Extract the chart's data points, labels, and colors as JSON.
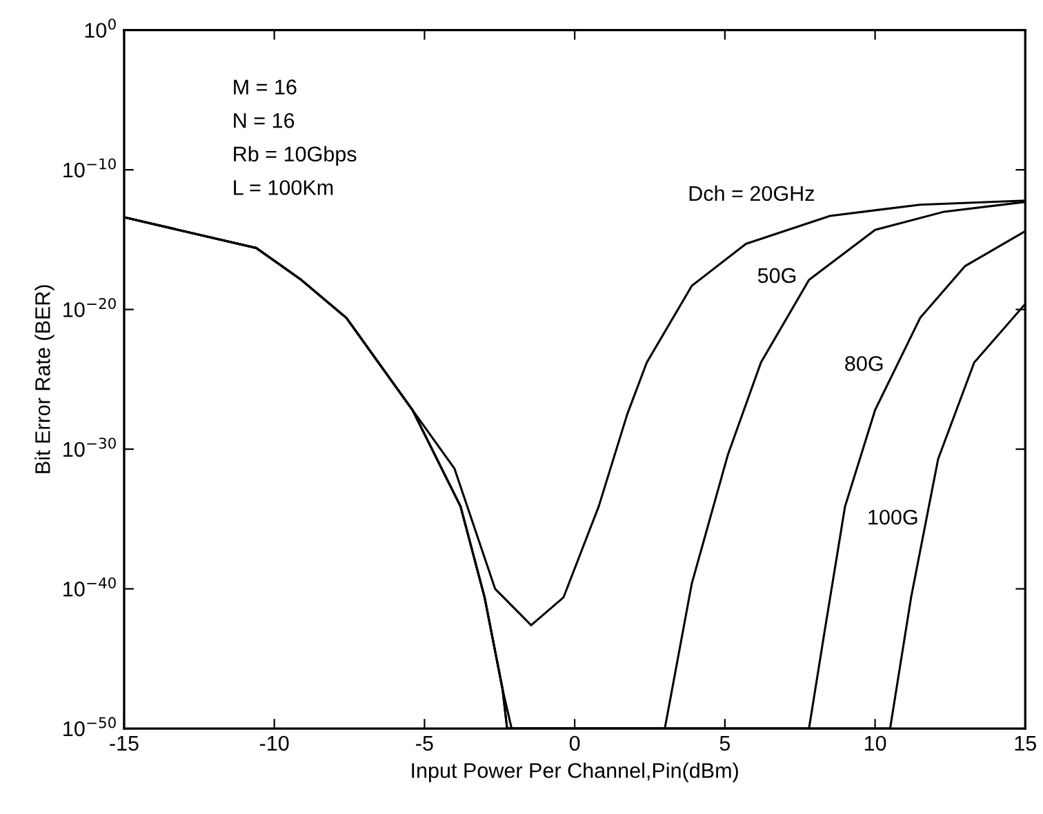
{
  "chart_data": {
    "type": "line",
    "xlabel": "Input Power Per Channel,Pin(dBm)",
    "ylabel": "Bit Error Rate (BER)",
    "log": "y",
    "xlim": [
      -15,
      15
    ],
    "xticks": [
      -15,
      -10,
      -5,
      0,
      5,
      10,
      15
    ],
    "ylim": [
      1e-50,
      1
    ],
    "yticks": [
      {
        "value": 1,
        "label": "10$^{0}$"
      },
      {
        "value": 1e-10,
        "label": "10$^{−10}$"
      },
      {
        "value": 1e-20,
        "label": "10$^{−20}$"
      },
      {
        "value": 1e-30,
        "label": "10$^{−30}$"
      },
      {
        "value": 1e-40,
        "label": "10$^{−40}$"
      },
      {
        "value": 1e-50,
        "label": "10$^{−50}$"
      }
    ],
    "grid": false,
    "legend": false,
    "marker": "none",
    "line_style": "solid",
    "annotations": [
      "M = 16",
      "N = 16",
      "Rb = 10Gbps",
      "L = 100Km"
    ],
    "series": [
      {
        "name": "Dch = 20GHz",
        "color": "#000000",
        "x": [
          -15,
          -10.6,
          -9.1,
          -7.6,
          -5.4,
          -4.0,
          -2.65,
          -1.45,
          -0.37,
          0.8,
          1.75,
          2.4,
          3.9,
          5.7,
          8.5,
          11.5,
          15
        ],
        "values": [
          4e-14,
          2.5e-16,
          1.3e-18,
          2.5e-21,
          6.3e-28,
          4e-32,
          1e-40,
          2.5e-43,
          2.5e-41,
          8e-35,
          3.2e-28,
          1.6e-24,
          5e-19,
          5e-16,
          5e-14,
          3.2e-13,
          6.3e-13
        ]
      },
      {
        "name": "50G",
        "color": "#000000",
        "x": [
          -15,
          -10.6,
          -9.1,
          -7.6,
          -5.4,
          -3.8,
          -3.0,
          -2.4,
          -2.1,
          3.0,
          3.9,
          5.1,
          6.2,
          7.8,
          10.0,
          12.3,
          15
        ],
        "values": [
          4e-14,
          2.5e-16,
          1.3e-18,
          2.5e-21,
          6.3e-28,
          8e-35,
          2.5e-41,
          6.3e-48,
          1e-50,
          1e-50,
          2.5e-40,
          4e-31,
          1.6e-24,
          1.3e-18,
          5e-15,
          1e-13,
          5e-13
        ]
      },
      {
        "name": "80G",
        "color": "#000000",
        "x": [
          -15,
          -10.6,
          -9.1,
          -7.6,
          -5.4,
          -3.8,
          -3.0,
          -2.4,
          -2.25,
          7.8,
          8.3,
          9.0,
          10.0,
          11.5,
          13.0,
          15
        ],
        "values": [
          4e-14,
          2.5e-16,
          1.3e-18,
          2.5e-21,
          6.3e-28,
          8e-35,
          2.5e-41,
          6.3e-48,
          1e-50,
          1e-50,
          5e-44,
          8e-35,
          6.3e-28,
          2.5e-21,
          1.3e-17,
          4e-15
        ]
      },
      {
        "name": "100G",
        "color": "#000000",
        "x": [
          -15,
          -10.6,
          -9.1,
          -7.6,
          -5.4,
          -3.8,
          -3.0,
          -2.4,
          -2.25,
          10.5,
          11.2,
          12.1,
          13.3,
          15
        ],
        "values": [
          4e-14,
          2.5e-16,
          1.3e-18,
          2.5e-21,
          6.3e-28,
          8e-35,
          2.5e-41,
          6.3e-48,
          1e-50,
          1e-50,
          2.5e-41,
          2e-31,
          1.6e-24,
          2.5e-20
        ]
      }
    ]
  }
}
